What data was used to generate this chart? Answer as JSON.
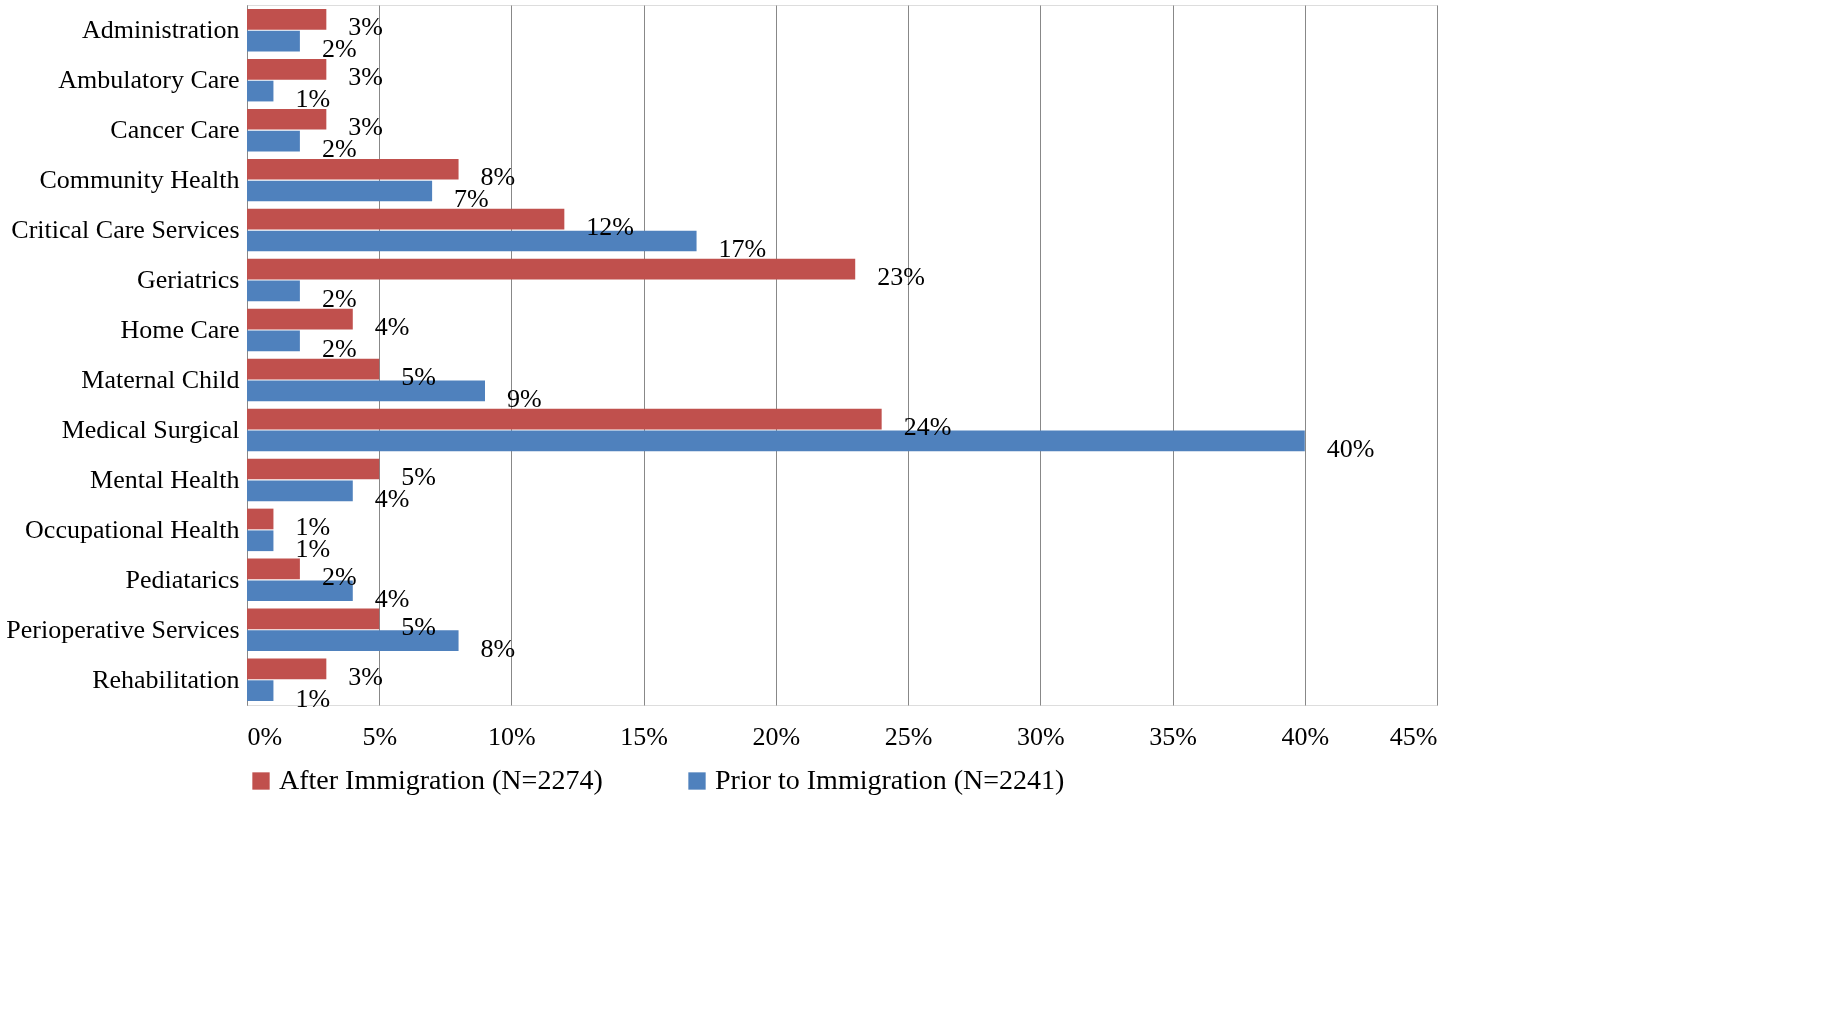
{
  "chart_data": {
    "type": "bar",
    "orientation": "horizontal",
    "categories": [
      "Administration",
      "Ambulatory Care",
      "Cancer Care",
      "Community Health",
      "Critical Care Services",
      "Geriatrics",
      "Home Care",
      "Maternal Child",
      "Medical Surgical",
      "Mental Health",
      "Occupational Health",
      "Pediatarics",
      "Perioperative Services",
      "Rehabilitation"
    ],
    "series": [
      {
        "name": "After Immigration (N=2274)",
        "color": "#c0504d",
        "values": [
          3,
          3,
          3,
          8,
          12,
          23,
          4,
          5,
          24,
          5,
          1,
          2,
          5,
          3
        ],
        "value_labels": [
          "3%",
          "3%",
          "3%",
          "8%",
          "12%",
          "23%",
          "4%",
          "5%",
          "24%",
          "5%",
          "1%",
          "2%",
          "5%",
          "3%"
        ]
      },
      {
        "name": "Prior to Immigration (N=2241)",
        "color": "#4f81bd",
        "values": [
          2,
          1,
          2,
          7,
          17,
          2,
          2,
          9,
          40,
          4,
          1,
          4,
          8,
          1
        ],
        "value_labels": [
          "2%",
          "1%",
          "2%",
          "7%",
          "17%",
          "2%",
          "2%",
          "9%",
          "40%",
          "4%",
          "1%",
          "4%",
          "8%",
          "1%"
        ]
      }
    ],
    "xlim": [
      0,
      45
    ],
    "xticks": [
      {
        "value": 0,
        "label": "0%"
      },
      {
        "value": 5,
        "label": "5%"
      },
      {
        "value": 10,
        "label": "10%"
      },
      {
        "value": 15,
        "label": "15%"
      },
      {
        "value": 20,
        "label": "20%"
      },
      {
        "value": 25,
        "label": "25%"
      },
      {
        "value": 30,
        "label": "30%"
      },
      {
        "value": 35,
        "label": "35%"
      },
      {
        "value": 40,
        "label": "40%"
      },
      {
        "value": 45,
        "label": "45%"
      }
    ],
    "grid": "x",
    "legend": "bottom"
  }
}
